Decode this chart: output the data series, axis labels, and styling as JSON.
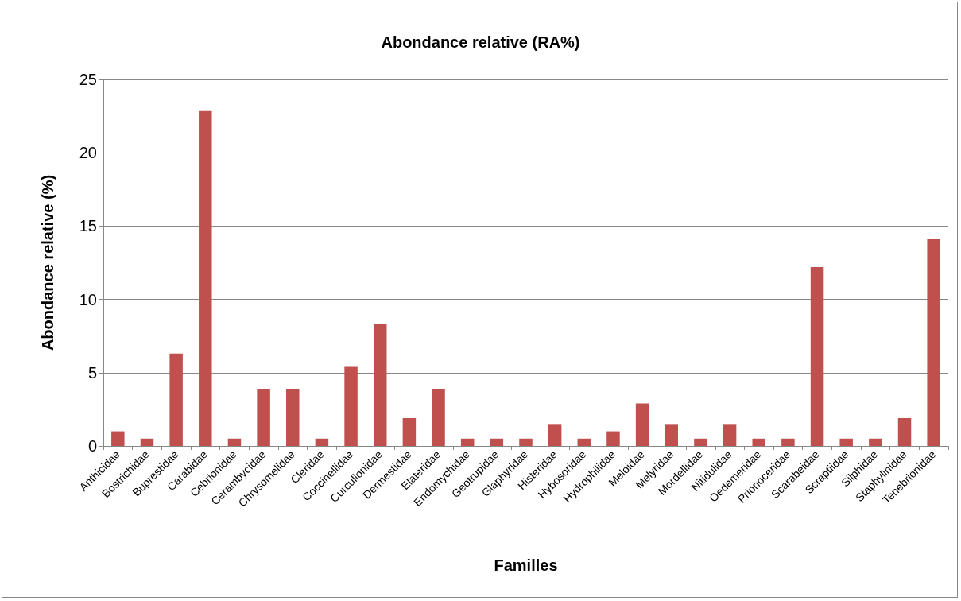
{
  "chart_data": {
    "type": "bar",
    "title": "Abondance relative (RA%)",
    "xlabel": "Familles",
    "ylabel": "Abondance relative (%)",
    "categories": [
      "Anthicidae",
      "Bostrichidae",
      "Buprestidae",
      "Carabidae",
      "Cebrionidae",
      "Cerambycidae",
      "Chrysomelidae",
      "Cleridae",
      "Coccinellidae",
      "Curculionidae",
      "Dermestidae",
      "Elateridae",
      "Endomychidae",
      "Geotrupidae",
      "Glaphyridae",
      "Histeridae",
      "Hybosoridae",
      "Hydrophilidae",
      "Meloidae",
      "Melyridae",
      "Mordellidae",
      "Nitidulidae",
      "Oedemeridae",
      "Prionoceridae",
      "Scarabeidae",
      "Scraptiidae",
      "Silphidae",
      "Staphylinidae",
      "Tenebrionidae"
    ],
    "values": [
      1.0,
      0.5,
      6.3,
      22.9,
      0.5,
      3.9,
      3.9,
      0.5,
      5.4,
      8.3,
      1.9,
      3.9,
      0.5,
      0.5,
      0.5,
      1.5,
      0.5,
      1.0,
      2.9,
      1.5,
      0.5,
      1.5,
      0.5,
      0.5,
      12.2,
      0.5,
      0.5,
      1.9,
      14.1
    ],
    "color": "#c0504d",
    "ylim": [
      0,
      25
    ],
    "yticks": [
      0,
      5,
      10,
      15,
      20,
      25
    ],
    "grid": "y"
  }
}
